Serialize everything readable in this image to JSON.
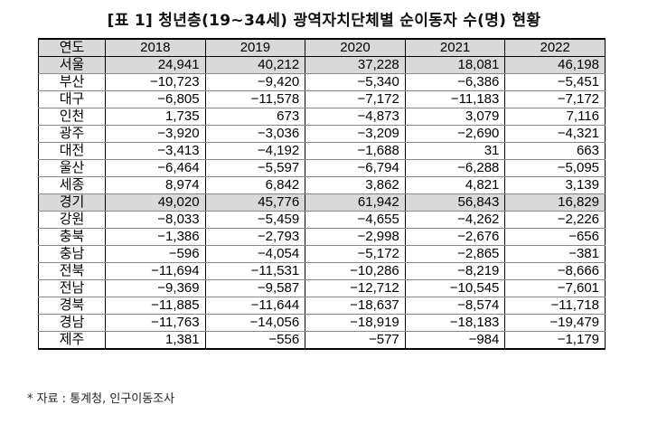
{
  "title": "[표 1] 청년층(19~34세) 광역자치단체별 순이동자 수(명) 현황",
  "headers": [
    "연도",
    "2018",
    "2019",
    "2020",
    "2021",
    "2022"
  ],
  "rows": [
    {
      "region": "서울",
      "values": [
        "24,941",
        "40,212",
        "37,228",
        "18,081",
        "46,198"
      ],
      "highlight": true
    },
    {
      "region": "부산",
      "values": [
        "−10,723",
        "−9,420",
        "−5,340",
        "−6,386",
        "−5,451"
      ],
      "highlight": false
    },
    {
      "region": "대구",
      "values": [
        "−6,805",
        "−11,578",
        "−7,172",
        "−11,183",
        "−7,172"
      ],
      "highlight": false
    },
    {
      "region": "인천",
      "values": [
        "1,735",
        "673",
        "−4,873",
        "3,079",
        "7,116"
      ],
      "highlight": false
    },
    {
      "region": "광주",
      "values": [
        "−3,920",
        "−3,036",
        "−3,209",
        "−2,690",
        "−4,321"
      ],
      "highlight": false
    },
    {
      "region": "대전",
      "values": [
        "−3,413",
        "−4,192",
        "−1,688",
        "31",
        "663"
      ],
      "highlight": false
    },
    {
      "region": "울산",
      "values": [
        "−6,464",
        "−5,597",
        "−6,794",
        "−6,288",
        "−5,095"
      ],
      "highlight": false
    },
    {
      "region": "세종",
      "values": [
        "8,974",
        "6,842",
        "3,862",
        "4,821",
        "3,139"
      ],
      "highlight": false
    },
    {
      "region": "경기",
      "values": [
        "49,020",
        "45,776",
        "61,942",
        "56,843",
        "16,829"
      ],
      "highlight": true
    },
    {
      "region": "강원",
      "values": [
        "−8,033",
        "−5,459",
        "−4,655",
        "−4,262",
        "−2,226"
      ],
      "highlight": false
    },
    {
      "region": "충북",
      "values": [
        "−1,386",
        "−2,793",
        "−2,998",
        "−2,676",
        "−656"
      ],
      "highlight": false
    },
    {
      "region": "충남",
      "values": [
        "−596",
        "−4,054",
        "−5,172",
        "−2,865",
        "−381"
      ],
      "highlight": false
    },
    {
      "region": "전북",
      "values": [
        "−11,694",
        "−11,531",
        "−10,286",
        "−8,219",
        "−8,666"
      ],
      "highlight": false
    },
    {
      "region": "전남",
      "values": [
        "−9,369",
        "−9,587",
        "−12,712",
        "−10,545",
        "−7,601"
      ],
      "highlight": false
    },
    {
      "region": "경북",
      "values": [
        "−11,885",
        "−11,644",
        "−18,637",
        "−8,574",
        "−11,718"
      ],
      "highlight": false
    },
    {
      "region": "경남",
      "values": [
        "−11,763",
        "−14,056",
        "−18,919",
        "−18,183",
        "−19,479"
      ],
      "highlight": false
    },
    {
      "region": "제주",
      "values": [
        "1,381",
        "−556",
        "−577",
        "−984",
        "−1,179"
      ],
      "highlight": false
    }
  ],
  "note": "* 자료 : 통계청, 인구이동조사",
  "colors": {
    "highlight_bg": "#d9d9d9",
    "border": "#000000"
  }
}
